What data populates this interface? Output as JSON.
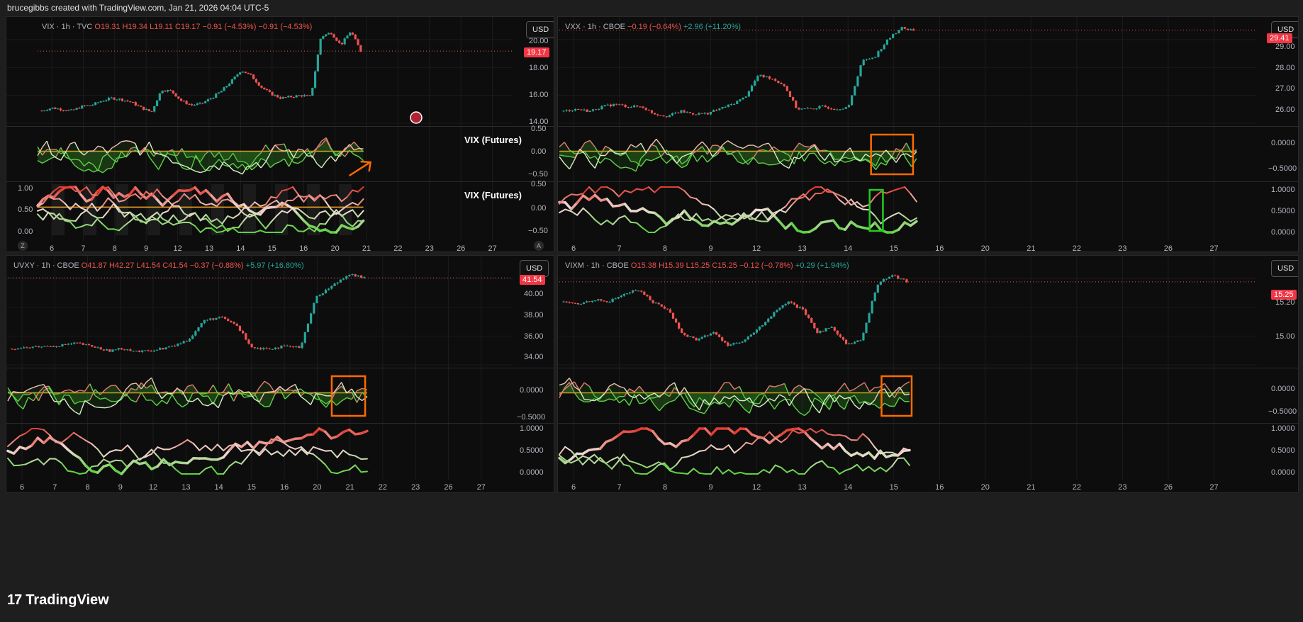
{
  "header": {
    "caption": "brucegibbs created with TradingView.com, Jan 21, 2026 04:04 UTC-5"
  },
  "footer": {
    "brand": "TradingView",
    "logo_glyph": "17"
  },
  "colors": {
    "up": "#26a69a",
    "down": "#ef5350",
    "zero_line": "#f5a623",
    "box_orange": "#ff6a00",
    "box_green": "#22cc22",
    "bg": "#0d0d0d"
  },
  "panels": [
    {
      "symbol": "VIX · 1h · TVC",
      "ohlc": [
        {
          "k": "O",
          "v": "19.31"
        },
        {
          "k": "H",
          "v": "19.34"
        },
        {
          "k": "L",
          "v": "19.11"
        },
        {
          "k": "C",
          "v": "19.17"
        }
      ],
      "change1": "−0.91 (−4.53%)",
      "change2": "−0.91 (−4.53%)",
      "change2_dir": "down",
      "currency": "USD",
      "last_price": "19.17",
      "price_ticks": [
        "20.00",
        "18.00",
        "16.00",
        "14.00"
      ],
      "osc1_ticks": [
        "0.50",
        "0.00",
        "−0.50"
      ],
      "osc2_ticks": [
        "0.50",
        "0.00",
        "−0.50"
      ],
      "osc2_left_ticks": [
        "1.00",
        "0.50",
        "0.00"
      ],
      "indicator_label_1": "VIX (Futures)",
      "indicator_label_2": "VIX (Futures)",
      "x_ticks": [
        "6",
        "7",
        "8",
        "9",
        "12",
        "13",
        "14",
        "15",
        "16",
        "20",
        "21",
        "22",
        "23",
        "26",
        "27"
      ],
      "corner_left": "Z",
      "corner_right": "A"
    },
    {
      "symbol": "VXX · 1h · CBOE",
      "ohlc": [],
      "change1": "−0.19 (−0.64%)",
      "change2": "+2.96 (+11.20%)",
      "change2_dir": "up",
      "currency": "USD",
      "last_price": "29.41",
      "price_ticks": [
        "29.00",
        "28.00",
        "27.00",
        "26.00"
      ],
      "osc1_ticks": [
        "0.0000",
        "−0.5000"
      ],
      "osc2_ticks": [
        "1.0000",
        "0.5000",
        "0.0000"
      ],
      "x_ticks": [
        "6",
        "7",
        "8",
        "9",
        "12",
        "13",
        "14",
        "15",
        "16",
        "20",
        "21",
        "22",
        "23",
        "26",
        "27"
      ]
    },
    {
      "symbol": "UVXY · 1h · CBOE",
      "ohlc": [
        {
          "k": "O",
          "v": "41.87"
        },
        {
          "k": "H",
          "v": "42.27"
        },
        {
          "k": "L",
          "v": "41.54"
        },
        {
          "k": "C",
          "v": "41.54"
        }
      ],
      "change1": "−0.37 (−0.88%)",
      "change2": "+5.97 (+16.80%)",
      "change2_dir": "up",
      "currency": "USD",
      "last_price": "41.54",
      "price_ticks": [
        "40.00",
        "38.00",
        "36.00",
        "34.00"
      ],
      "osc1_ticks": [
        "0.0000",
        "−0.5000"
      ],
      "osc2_ticks": [
        "1.0000",
        "0.5000",
        "0.0000"
      ],
      "x_ticks": [
        "6",
        "7",
        "8",
        "9",
        "12",
        "13",
        "14",
        "15",
        "16",
        "20",
        "21",
        "22",
        "23",
        "26",
        "27"
      ]
    },
    {
      "symbol": "VIXM · 1h · CBOE",
      "ohlc": [
        {
          "k": "O",
          "v": "15.38"
        },
        {
          "k": "H",
          "v": "15.39"
        },
        {
          "k": "L",
          "v": "15.25"
        },
        {
          "k": "C",
          "v": "15.25"
        }
      ],
      "change1": "−0.12 (−0.78%)",
      "change2": "+0.29 (+1.94%)",
      "change2_dir": "up",
      "currency": "USD",
      "last_price": "15.25",
      "price_ticks": [
        "15.20",
        "15.00"
      ],
      "osc1_ticks": [
        "0.0000",
        "−0.5000"
      ],
      "osc2_ticks": [
        "1.0000",
        "0.5000",
        "0.0000"
      ],
      "x_ticks": [
        "6",
        "7",
        "8",
        "9",
        "12",
        "13",
        "14",
        "15",
        "16",
        "20",
        "21",
        "22",
        "23",
        "26",
        "27"
      ]
    }
  ],
  "chart_data": [
    {
      "type": "candlestick",
      "symbol": "VIX",
      "interval": "1h",
      "x_ticks": [
        "6",
        "7",
        "8",
        "9",
        "12",
        "13",
        "14",
        "15",
        "16",
        "20",
        "21",
        "22",
        "23",
        "26",
        "27"
      ],
      "ylim": [
        14.0,
        21.0
      ],
      "close_series": [
        14.9,
        15.1,
        15.0,
        14.9,
        15.2,
        15.3,
        15.6,
        15.8,
        15.7,
        15.5,
        15.1,
        14.8,
        16.4,
        16.3,
        15.6,
        15.3,
        15.4,
        15.8,
        16.3,
        17.0,
        17.8,
        17.4,
        16.6,
        16.1,
        15.8,
        15.9,
        16.0,
        15.9,
        20.2,
        20.5,
        19.6,
        20.6,
        19.17
      ],
      "last": 19.17
    },
    {
      "type": "candlestick",
      "symbol": "VXX",
      "interval": "1h",
      "x_ticks": [
        "6",
        "7",
        "8",
        "9",
        "12",
        "13",
        "14",
        "15",
        "16",
        "20",
        "21",
        "22",
        "23",
        "26",
        "27"
      ],
      "ylim": [
        25.5,
        29.6
      ],
      "close_series": [
        26.0,
        26.1,
        26.0,
        26.2,
        26.3,
        26.2,
        26.2,
        25.9,
        25.8,
        26.0,
        25.9,
        25.9,
        26.1,
        26.3,
        26.6,
        27.5,
        27.4,
        27.1,
        26.1,
        26.1,
        26.2,
        26.1,
        26.2,
        28.1,
        28.3,
        29.0,
        29.5,
        29.41
      ],
      "last": 29.41
    },
    {
      "type": "candlestick",
      "symbol": "UVXY",
      "interval": "1h",
      "x_ticks": [
        "6",
        "7",
        "8",
        "9",
        "12",
        "13",
        "14",
        "15",
        "16",
        "20",
        "21",
        "22",
        "23",
        "26",
        "27"
      ],
      "ylim": [
        33.5,
        42.8
      ],
      "close_series": [
        35.0,
        35.1,
        35.2,
        35.3,
        35.5,
        35.2,
        34.8,
        35.0,
        34.7,
        34.9,
        35.2,
        35.8,
        37.6,
        37.9,
        37.2,
        35.1,
        35.0,
        35.2,
        35.1,
        39.8,
        40.8,
        41.9,
        41.54
      ],
      "last": 41.54
    },
    {
      "type": "candlestick",
      "symbol": "VIXM",
      "interval": "1h",
      "x_ticks": [
        "6",
        "7",
        "8",
        "9",
        "12",
        "13",
        "14",
        "15",
        "16",
        "20",
        "21",
        "22",
        "23",
        "26",
        "27"
      ],
      "ylim": [
        14.92,
        15.32
      ],
      "close_series": [
        15.17,
        15.16,
        15.18,
        15.17,
        15.2,
        15.22,
        15.17,
        15.14,
        15.04,
        15.02,
        15.05,
        15.0,
        15.01,
        15.06,
        15.12,
        15.17,
        15.14,
        15.05,
        15.07,
        15.0,
        15.02,
        15.24,
        15.28,
        15.25
      ],
      "last": 15.25
    }
  ]
}
